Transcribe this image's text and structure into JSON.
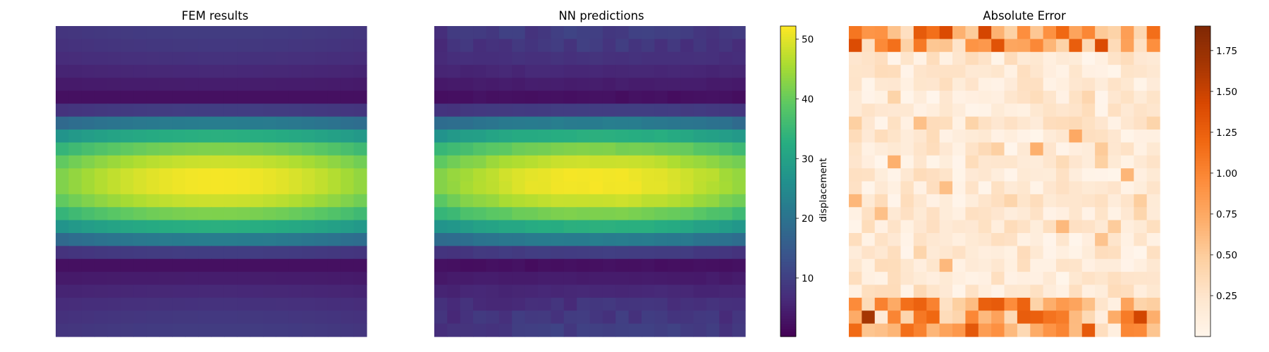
{
  "chart_data": [
    {
      "type": "heatmap",
      "title": "FEM results",
      "grid": [
        24,
        24
      ],
      "colormap": "viridis",
      "value_range": [
        0.2,
        52.2
      ],
      "field": "bending-plate displacement: low at top and bottom rows, peak (~52) near row 11-12, column 12, slightly lower toward left/right edges"
    },
    {
      "type": "heatmap",
      "title": "NN predictions",
      "grid": [
        24,
        24
      ],
      "colormap": "viridis",
      "value_range": [
        0.2,
        52.2
      ],
      "field": "same pattern as FEM results"
    },
    {
      "type": "heatmap",
      "title": "Absolute Error",
      "grid": [
        24,
        24
      ],
      "colormap": "Oranges",
      "value_range": [
        0.0,
        1.9
      ],
      "field": "mostly 0-0.5, larger errors (up to ~1.85) along top and bottom edges"
    }
  ],
  "colorbars": [
    {
      "label": "displacement",
      "ticks": [
        10,
        20,
        30,
        40,
        50
      ],
      "min": 0.2,
      "max": 52.2,
      "colormap": "viridis"
    },
    {
      "label": "",
      "ticks": [
        0.25,
        0.5,
        0.75,
        1.0,
        1.25,
        1.5,
        1.75
      ],
      "tick_labels": [
        "0.25",
        "0.50",
        "0.75",
        "1.00",
        "1.25",
        "1.50",
        "1.75"
      ],
      "min": 0.0,
      "max": 1.9,
      "colormap": "Oranges"
    }
  ]
}
